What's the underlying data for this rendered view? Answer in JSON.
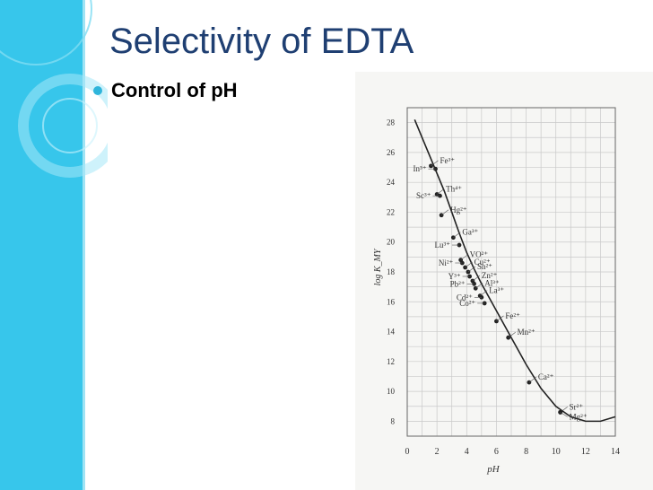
{
  "slide": {
    "title": "Selectivity of EDTA",
    "bullet": "Control of pH"
  },
  "theme": {
    "sidebar_color": "#37c6eb",
    "title_color": "#1f3f72",
    "bullet_color": "#2fb5db"
  },
  "chart_data": {
    "type": "line",
    "xlabel": "pH",
    "ylabel": "log K_MY",
    "xlim": [
      0,
      14
    ],
    "ylim": [
      7,
      29
    ],
    "x_ticks": [
      0,
      2,
      4,
      6,
      8,
      10,
      12,
      14
    ],
    "y_ticks": [
      8,
      10,
      12,
      14,
      16,
      18,
      20,
      22,
      24,
      26,
      28
    ],
    "grid": true,
    "curve": [
      {
        "x": 0.5,
        "y": 28.2
      },
      {
        "x": 1,
        "y": 27.0
      },
      {
        "x": 1.5,
        "y": 25.8
      },
      {
        "x": 2,
        "y": 24.6
      },
      {
        "x": 2.5,
        "y": 23.4
      },
      {
        "x": 3,
        "y": 22.0
      },
      {
        "x": 3.5,
        "y": 20.6
      },
      {
        "x": 4,
        "y": 19.3
      },
      {
        "x": 4.5,
        "y": 18.2
      },
      {
        "x": 5,
        "y": 17.2
      },
      {
        "x": 5.5,
        "y": 16.3
      },
      {
        "x": 6,
        "y": 15.4
      },
      {
        "x": 7,
        "y": 13.6
      },
      {
        "x": 8,
        "y": 11.8
      },
      {
        "x": 9,
        "y": 10.2
      },
      {
        "x": 10,
        "y": 9.0
      },
      {
        "x": 11,
        "y": 8.3
      },
      {
        "x": 12,
        "y": 8.0
      },
      {
        "x": 13,
        "y": 8.0
      },
      {
        "x": 14,
        "y": 8.3
      }
    ],
    "points": [
      {
        "label": "Fe³⁺",
        "x": 1.6,
        "y": 25.1,
        "side": "right"
      },
      {
        "label": "In³⁺",
        "x": 1.9,
        "y": 24.9,
        "side": "left"
      },
      {
        "label": "Th⁴⁺",
        "x": 2.0,
        "y": 23.2,
        "side": "right"
      },
      {
        "label": "Sc³⁺",
        "x": 2.2,
        "y": 23.1,
        "side": "left"
      },
      {
        "label": "Hg²⁺",
        "x": 2.3,
        "y": 21.8,
        "side": "right"
      },
      {
        "label": "Ga³⁺",
        "x": 3.1,
        "y": 20.3,
        "side": "right"
      },
      {
        "label": "Lu³⁺",
        "x": 3.5,
        "y": 19.8,
        "side": "left"
      },
      {
        "label": "VO²⁺",
        "x": 3.6,
        "y": 18.8,
        "side": "right"
      },
      {
        "label": "Ni²⁺",
        "x": 3.7,
        "y": 18.6,
        "side": "left"
      },
      {
        "label": "Cu²⁺",
        "x": 3.9,
        "y": 18.3,
        "side": "right"
      },
      {
        "label": "Sn²⁺",
        "x": 4.1,
        "y": 18.0,
        "side": "right"
      },
      {
        "label": "Y³⁺",
        "x": 4.2,
        "y": 17.7,
        "side": "left"
      },
      {
        "label": "Zn²⁺",
        "x": 4.4,
        "y": 17.4,
        "side": "right"
      },
      {
        "label": "Pb²⁺",
        "x": 4.5,
        "y": 17.2,
        "side": "left"
      },
      {
        "label": "Al³⁺",
        "x": 4.6,
        "y": 16.9,
        "side": "right"
      },
      {
        "label": "La³⁺",
        "x": 4.9,
        "y": 16.4,
        "side": "right"
      },
      {
        "label": "Cd²⁺",
        "x": 5.0,
        "y": 16.3,
        "side": "left"
      },
      {
        "label": "Co²⁺",
        "x": 5.2,
        "y": 15.9,
        "side": "left"
      },
      {
        "label": "Fe²⁺",
        "x": 6.0,
        "y": 14.7,
        "side": "right"
      },
      {
        "label": "Mn²⁺",
        "x": 6.8,
        "y": 13.6,
        "side": "right"
      },
      {
        "label": "Ca²⁺",
        "x": 8.2,
        "y": 10.6,
        "side": "right"
      },
      {
        "label": "Sr²⁺",
        "x": 10.3,
        "y": 8.6,
        "side": "right"
      },
      {
        "label": "Mg²⁺",
        "x": 10.3,
        "y": 8.6,
        "side": "right"
      }
    ]
  }
}
